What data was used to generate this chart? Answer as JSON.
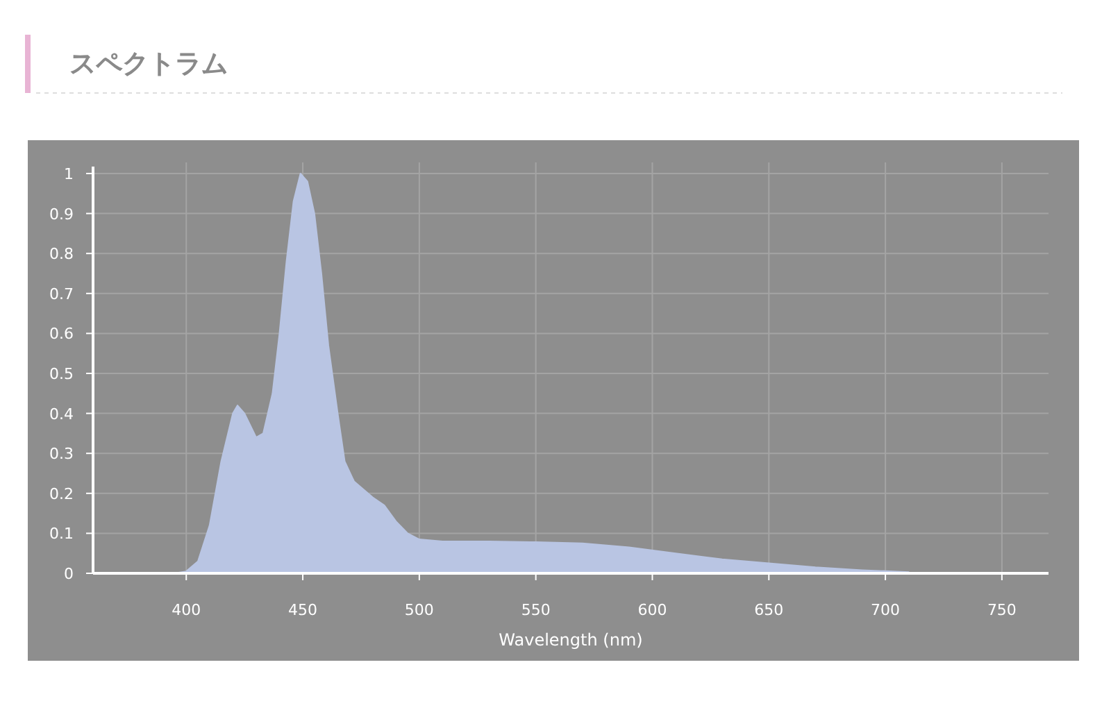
{
  "chart_data": {
    "type": "area",
    "title": "スペクトラム",
    "xlabel": "Wavelength (nm)",
    "x": [
      360,
      380,
      395,
      400,
      405,
      410,
      415,
      420,
      422,
      425,
      430,
      433,
      437,
      440,
      443,
      446,
      449,
      452,
      455,
      458,
      461,
      465,
      468,
      472,
      476,
      480,
      485,
      490,
      495,
      500,
      510,
      530,
      550,
      570,
      590,
      610,
      630,
      650,
      670,
      690,
      710
    ],
    "values": [
      0,
      0,
      0,
      0.005,
      0.03,
      0.12,
      0.28,
      0.4,
      0.42,
      0.4,
      0.34,
      0.35,
      0.45,
      0.6,
      0.78,
      0.93,
      1,
      0.98,
      0.9,
      0.75,
      0.57,
      0.4,
      0.28,
      0.23,
      0.21,
      0.19,
      0.17,
      0.13,
      0.1,
      0.085,
      0.08,
      0.08,
      0.078,
      0.075,
      0.065,
      0.05,
      0.035,
      0.025,
      0.015,
      0.008,
      0.003
    ],
    "color": "#b9c5e3",
    "xlim": [
      360,
      770
    ],
    "ylim": [
      0,
      1
    ],
    "xticks": [
      400,
      450,
      500,
      550,
      600,
      650,
      700,
      750
    ],
    "yticks": [
      0,
      {
        "value": 0.1,
        "label": "0.1"
      },
      {
        "value": 0.2,
        "label": "0.2"
      },
      {
        "value": 0.3,
        "label": "0.3"
      },
      {
        "value": 0.4,
        "label": "0.4"
      },
      {
        "value": 0.5,
        "label": "0.5"
      },
      {
        "value": 0.6,
        "label": "0.6"
      },
      {
        "value": 0.7,
        "label": "0.7"
      },
      {
        "value": 0.8,
        "label": "0.8"
      },
      {
        "value": 0.9,
        "label": "0.9"
      },
      1
    ],
    "grid": true
  }
}
